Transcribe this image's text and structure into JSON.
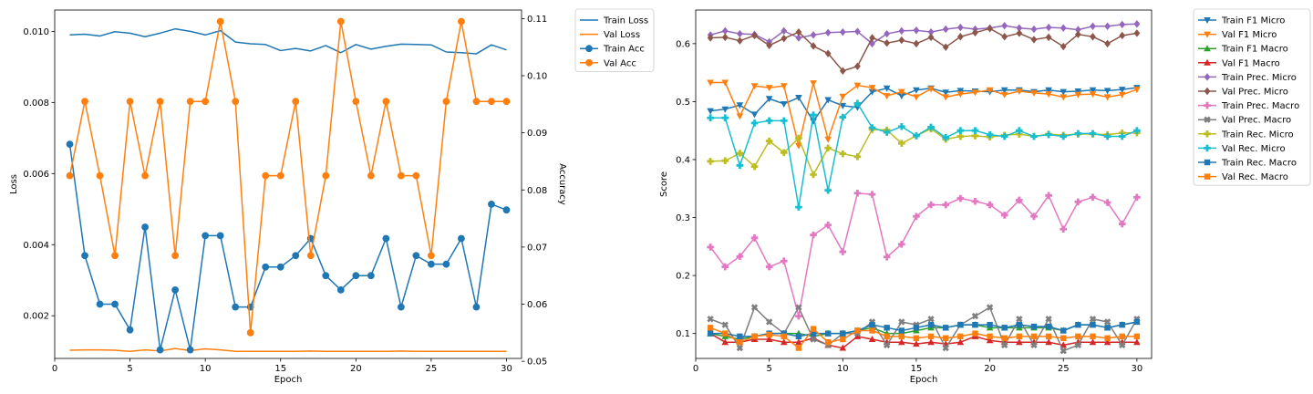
{
  "chart_data": [
    {
      "type": "line",
      "xlabel": "Epoch",
      "ylabel": "Loss",
      "y2label": "Accuracy",
      "x": [
        1,
        2,
        3,
        4,
        5,
        6,
        7,
        8,
        9,
        10,
        11,
        12,
        13,
        14,
        15,
        16,
        17,
        18,
        19,
        20,
        21,
        22,
        23,
        24,
        25,
        26,
        27,
        28,
        29,
        30
      ],
      "xlim": [
        0,
        31
      ],
      "ylim": [
        0.0008,
        0.0106
      ],
      "y2lim": [
        0.0505,
        0.1115
      ],
      "xticks": [
        "0",
        "5",
        "10",
        "15",
        "20",
        "25",
        "30"
      ],
      "yticks": [
        "0.002",
        "0.004",
        "0.006",
        "0.008",
        "0.010"
      ],
      "y2ticks": [
        "0.05",
        "0.06",
        "0.07",
        "0.08",
        "0.09",
        "0.10",
        "0.11"
      ],
      "legend_position": "outside upper right",
      "series": [
        {
          "name": "Train Loss",
          "axis": "left",
          "color": "#1f77b4",
          "marker": "none",
          "values": [
            0.0099,
            0.00992,
            0.00987,
            0.00999,
            0.00995,
            0.00985,
            0.00995,
            0.01007,
            0.01,
            0.0099,
            0.01002,
            0.0097,
            0.00965,
            0.00963,
            0.00946,
            0.00952,
            0.00945,
            0.0096,
            0.0094,
            0.00963,
            0.0095,
            0.00958,
            0.00964,
            0.00963,
            0.00962,
            0.00942,
            0.0094,
            0.00937,
            0.00962,
            0.00948
          ]
        },
        {
          "name": "Val Loss",
          "axis": "left",
          "color": "#ff7f0e",
          "marker": "none",
          "values": [
            0.00103,
            0.00104,
            0.00104,
            0.00103,
            0.001,
            0.00104,
            0.00101,
            0.00108,
            0.00102,
            0.00107,
            0.00104,
            0.001,
            0.001,
            0.001,
            0.001,
            0.001,
            0.00101,
            0.001,
            0.001,
            0.001,
            0.001,
            0.001,
            0.00101,
            0.001,
            0.001,
            0.001,
            0.001,
            0.001,
            0.001,
            0.001
          ]
        },
        {
          "name": "Train Acc",
          "axis": "right",
          "color": "#1f77b4",
          "marker": "circle",
          "values": [
            0.088,
            0.0685,
            0.06,
            0.06,
            0.0555,
            0.0735,
            0.052,
            0.0625,
            0.052,
            0.072,
            0.072,
            0.0595,
            0.0595,
            0.0665,
            0.0665,
            0.0685,
            0.0715,
            0.065,
            0.0625,
            0.065,
            0.065,
            0.0715,
            0.0595,
            0.0685,
            0.067,
            0.067,
            0.0715,
            0.0595,
            0.0775,
            0.0765
          ]
        },
        {
          "name": "Val Acc",
          "axis": "right",
          "color": "#ff7f0e",
          "marker": "circle",
          "values": [
            0.0825,
            0.0955,
            0.0825,
            0.0685,
            0.0955,
            0.0825,
            0.0955,
            0.0685,
            0.0955,
            0.0955,
            0.1095,
            0.0955,
            0.055,
            0.0825,
            0.0825,
            0.0955,
            0.0685,
            0.0825,
            0.1095,
            0.0955,
            0.0825,
            0.0955,
            0.0825,
            0.0825,
            0.0685,
            0.0955,
            0.1095,
            0.0955,
            0.0955,
            0.0955
          ]
        }
      ]
    },
    {
      "type": "line",
      "xlabel": "Epoch",
      "ylabel": "Score",
      "x": [
        1,
        2,
        3,
        4,
        5,
        6,
        7,
        8,
        9,
        10,
        11,
        12,
        13,
        14,
        15,
        16,
        17,
        18,
        19,
        20,
        21,
        22,
        23,
        24,
        25,
        26,
        27,
        28,
        29,
        30
      ],
      "xlim": [
        0,
        31
      ],
      "ylim": [
        0.057,
        0.658
      ],
      "xticks": [
        "0",
        "5",
        "10",
        "15",
        "20",
        "25",
        "30"
      ],
      "yticks": [
        "0.1",
        "0.2",
        "0.3",
        "0.4",
        "0.5",
        "0.6"
      ],
      "legend_position": "outside upper right",
      "series": [
        {
          "name": "Train F1 Micro",
          "color": "#1f77b4",
          "marker": "triangle-down",
          "values": [
            0.484,
            0.487,
            0.494,
            0.478,
            0.505,
            0.496,
            0.507,
            0.466,
            0.503,
            0.493,
            0.49,
            0.517,
            0.523,
            0.51,
            0.52,
            0.523,
            0.516,
            0.519,
            0.518,
            0.517,
            0.52,
            0.52,
            0.517,
            0.52,
            0.517,
            0.518,
            0.52,
            0.519,
            0.521,
            0.524
          ]
        },
        {
          "name": "Val F1 Micro",
          "color": "#ff7f0e",
          "marker": "triangle-down",
          "values": [
            0.533,
            0.533,
            0.475,
            0.527,
            0.524,
            0.527,
            0.424,
            0.532,
            0.435,
            0.509,
            0.528,
            0.524,
            0.51,
            0.517,
            0.508,
            0.522,
            0.508,
            0.513,
            0.516,
            0.52,
            0.512,
            0.518,
            0.515,
            0.513,
            0.508,
            0.512,
            0.513,
            0.508,
            0.512,
            0.521
          ]
        },
        {
          "name": "Train F1 Macro",
          "color": "#2ca02c",
          "marker": "triangle-up",
          "values": [
            0.1,
            0.095,
            0.09,
            0.095,
            0.1,
            0.1,
            0.1,
            0.095,
            0.1,
            0.1,
            0.105,
            0.11,
            0.1,
            0.1,
            0.105,
            0.11,
            0.11,
            0.115,
            0.115,
            0.11,
            0.11,
            0.11,
            0.11,
            0.11,
            0.105,
            0.115,
            0.115,
            0.11,
            0.115,
            0.12
          ]
        },
        {
          "name": "Val F1 Macro",
          "color": "#d62728",
          "marker": "triangle-up",
          "values": [
            0.1,
            0.085,
            0.085,
            0.09,
            0.09,
            0.085,
            0.085,
            0.092,
            0.08,
            0.075,
            0.095,
            0.09,
            0.085,
            0.085,
            0.082,
            0.085,
            0.082,
            0.085,
            0.095,
            0.088,
            0.085,
            0.085,
            0.085,
            0.085,
            0.08,
            0.085,
            0.085,
            0.085,
            0.085,
            0.085
          ]
        },
        {
          "name": "Train Prec. Micro",
          "color": "#9467bd",
          "marker": "diamond",
          "values": [
            0.615,
            0.622,
            0.617,
            0.616,
            0.603,
            0.622,
            0.61,
            0.615,
            0.619,
            0.62,
            0.621,
            0.6,
            0.617,
            0.622,
            0.623,
            0.62,
            0.625,
            0.628,
            0.625,
            0.627,
            0.631,
            0.627,
            0.625,
            0.628,
            0.627,
            0.624,
            0.63,
            0.63,
            0.633,
            0.634
          ]
        },
        {
          "name": "Val Prec. Micro",
          "color": "#8c564b",
          "marker": "diamond",
          "values": [
            0.61,
            0.611,
            0.605,
            0.614,
            0.597,
            0.609,
            0.62,
            0.596,
            0.583,
            0.553,
            0.561,
            0.61,
            0.601,
            0.606,
            0.6,
            0.611,
            0.594,
            0.612,
            0.619,
            0.626,
            0.612,
            0.618,
            0.607,
            0.611,
            0.595,
            0.616,
            0.612,
            0.6,
            0.614,
            0.618
          ]
        },
        {
          "name": "Train Prec. Macro",
          "color": "#e377c2",
          "marker": "plus-filled",
          "values": [
            0.249,
            0.215,
            0.233,
            0.265,
            0.215,
            0.225,
            0.13,
            0.27,
            0.287,
            0.241,
            0.342,
            0.34,
            0.232,
            0.254,
            0.302,
            0.322,
            0.322,
            0.333,
            0.328,
            0.322,
            0.304,
            0.33,
            0.302,
            0.338,
            0.28,
            0.327,
            0.335,
            0.326,
            0.289,
            0.335
          ]
        },
        {
          "name": "Val Prec. Macro",
          "color": "#7f7f7f",
          "marker": "x-filled",
          "values": [
            0.125,
            0.115,
            0.075,
            0.145,
            0.12,
            0.1,
            0.145,
            0.09,
            0.08,
            0.1,
            0.1,
            0.12,
            0.08,
            0.12,
            0.115,
            0.125,
            0.075,
            0.115,
            0.13,
            0.145,
            0.08,
            0.125,
            0.08,
            0.125,
            0.07,
            0.08,
            0.125,
            0.12,
            0.08,
            0.125
          ]
        },
        {
          "name": "Train Rec. Micro",
          "color": "#bcbd22",
          "marker": "plus-filled",
          "values": [
            0.397,
            0.398,
            0.411,
            0.388,
            0.432,
            0.412,
            0.437,
            0.374,
            0.42,
            0.41,
            0.405,
            0.452,
            0.451,
            0.428,
            0.441,
            0.453,
            0.435,
            0.44,
            0.441,
            0.439,
            0.442,
            0.444,
            0.44,
            0.444,
            0.442,
            0.444,
            0.444,
            0.443,
            0.446,
            0.446
          ]
        },
        {
          "name": "Val Rec. Micro",
          "color": "#17becf",
          "marker": "plus-filled",
          "values": [
            0.472,
            0.472,
            0.39,
            0.463,
            0.467,
            0.467,
            0.318,
            0.477,
            0.347,
            0.473,
            0.497,
            0.455,
            0.447,
            0.457,
            0.441,
            0.456,
            0.438,
            0.45,
            0.45,
            0.443,
            0.44,
            0.45,
            0.44,
            0.443,
            0.44,
            0.445,
            0.445,
            0.44,
            0.44,
            0.45
          ]
        },
        {
          "name": "Train Rec. Macro",
          "color": "#1f77b4",
          "marker": "square",
          "values": [
            0.1,
            0.1,
            0.095,
            0.095,
            0.1,
            0.1,
            0.095,
            0.1,
            0.1,
            0.1,
            0.105,
            0.115,
            0.11,
            0.105,
            0.11,
            0.115,
            0.11,
            0.115,
            0.115,
            0.115,
            0.11,
            0.115,
            0.112,
            0.112,
            0.105,
            0.115,
            0.115,
            0.11,
            0.115,
            0.12
          ]
        },
        {
          "name": "Val Rec. Macro",
          "color": "#ff7f0e",
          "marker": "square",
          "values": [
            0.11,
            0.1,
            0.085,
            0.095,
            0.098,
            0.095,
            0.075,
            0.108,
            0.085,
            0.09,
            0.105,
            0.105,
            0.095,
            0.095,
            0.092,
            0.095,
            0.092,
            0.095,
            0.1,
            0.095,
            0.092,
            0.095,
            0.095,
            0.095,
            0.092,
            0.095,
            0.095,
            0.092,
            0.095,
            0.095
          ]
        }
      ]
    }
  ]
}
